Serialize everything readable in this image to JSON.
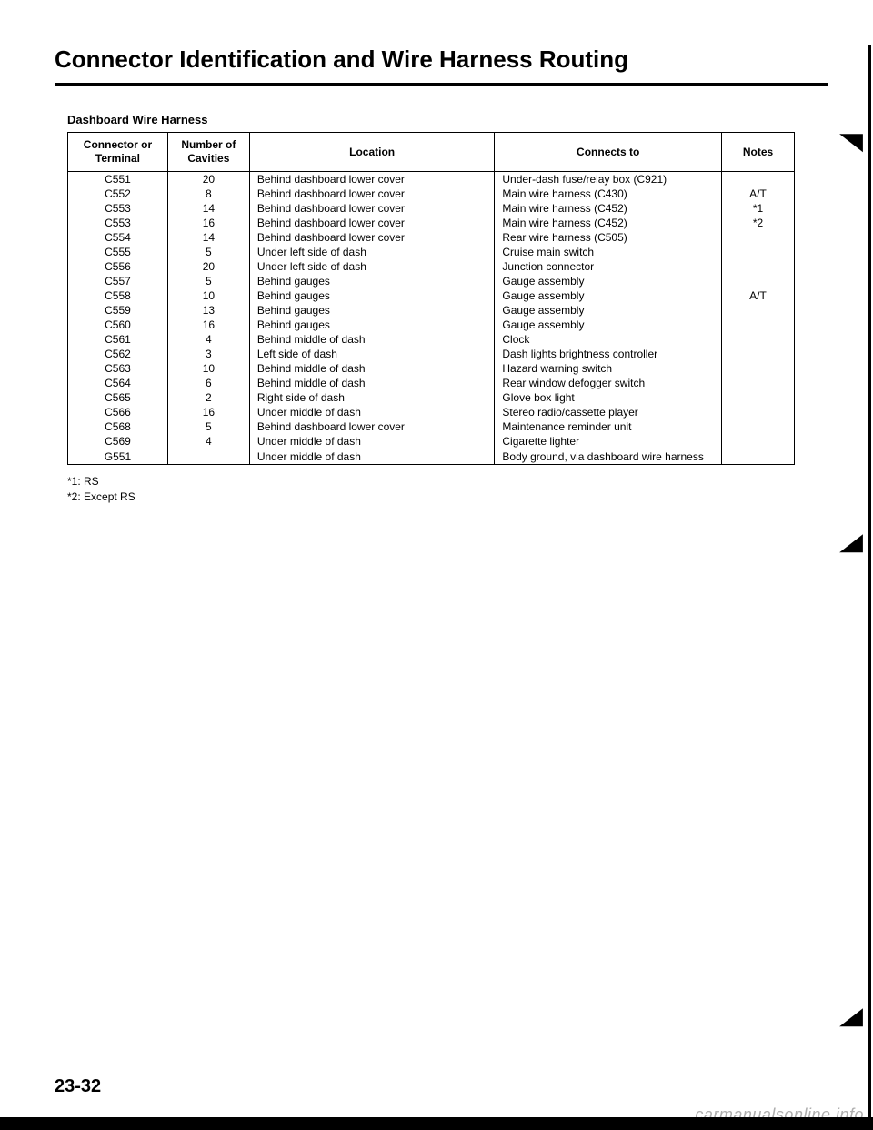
{
  "title": "Connector Identification and Wire Harness Routing",
  "subheading": "Dashboard Wire Harness",
  "table": {
    "columns": [
      {
        "label": "Connector or\nTerminal",
        "class": "col-connector",
        "align": "center"
      },
      {
        "label": "Number of\nCavities",
        "class": "col-cavities",
        "align": "center"
      },
      {
        "label": "Location",
        "class": "col-location",
        "align": "left"
      },
      {
        "label": "Connects to",
        "class": "col-connects",
        "align": "left"
      },
      {
        "label": "Notes",
        "class": "col-notes",
        "align": "center"
      }
    ],
    "rows": [
      [
        "C551",
        "20",
        "Behind dashboard lower cover",
        "Under-dash fuse/relay box (C921)",
        ""
      ],
      [
        "C552",
        "8",
        "Behind dashboard lower cover",
        "Main wire harness (C430)",
        "A/T"
      ],
      [
        "C553",
        "14",
        "Behind dashboard lower cover",
        "Main wire harness (C452)",
        "*1"
      ],
      [
        "C553",
        "16",
        "Behind dashboard lower cover",
        "Main wire harness (C452)",
        "*2"
      ],
      [
        "C554",
        "14",
        "Behind dashboard lower cover",
        "Rear wire harness (C505)",
        ""
      ],
      [
        "C555",
        "5",
        "Under left side of dash",
        "Cruise main switch",
        ""
      ],
      [
        "C556",
        "20",
        "Under left side of dash",
        "Junction connector",
        ""
      ],
      [
        "C557",
        "5",
        "Behind gauges",
        "Gauge assembly",
        ""
      ],
      [
        "C558",
        "10",
        "Behind gauges",
        "Gauge assembly",
        "A/T"
      ],
      [
        "C559",
        "13",
        "Behind gauges",
        "Gauge assembly",
        ""
      ],
      [
        "C560",
        "16",
        "Behind gauges",
        "Gauge assembly",
        ""
      ],
      [
        "C561",
        "4",
        "Behind middle of dash",
        "Clock",
        ""
      ],
      [
        "C562",
        "3",
        "Left side of dash",
        "Dash lights brightness controller",
        ""
      ],
      [
        "C563",
        "10",
        "Behind middle of dash",
        "Hazard warning switch",
        ""
      ],
      [
        "C564",
        "6",
        "Behind middle of dash",
        "Rear window defogger switch",
        ""
      ],
      [
        "C565",
        "2",
        "Right side of dash",
        "Glove box light",
        ""
      ],
      [
        "C566",
        "16",
        "Under middle of dash",
        "Stereo radio/cassette player",
        ""
      ],
      [
        "C568",
        "5",
        "Behind dashboard lower cover",
        "Maintenance reminder unit",
        ""
      ],
      [
        "C569",
        "4",
        "Under middle of dash",
        "Cigarette lighter",
        ""
      ]
    ],
    "rows2": [
      [
        "G551",
        "",
        "Under middle of dash",
        "Body ground, via dashboard wire harness",
        ""
      ]
    ]
  },
  "footnotes": [
    "*1: RS",
    "*2: Except RS"
  ],
  "page_number": "23-32",
  "watermark": "carmanualsonline.info",
  "style": {
    "title_fontsize": 26,
    "body_fontsize": 12,
    "font_family": "Arial, Helvetica, sans-serif",
    "border_color": "#000000",
    "background": "#ffffff"
  }
}
